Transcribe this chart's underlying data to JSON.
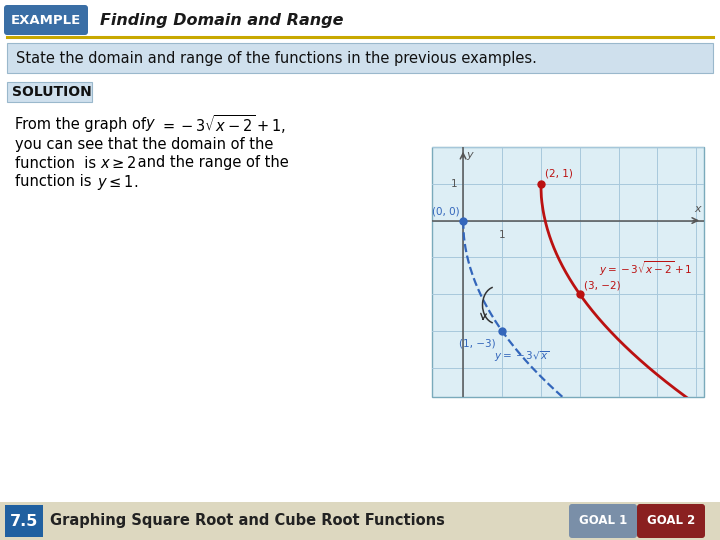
{
  "title": "Finding Domain and Range",
  "example_label": "EXAMPLE",
  "example_bg": "#3a6ea5",
  "title_color": "#1a1a1a",
  "gold_line_color": "#c8a800",
  "problem_text": "State the domain and range of the functions in the previous examples.",
  "problem_bg": "#cfe0ed",
  "problem_border": "#9ab8cc",
  "solution_label": "SOLUTION",
  "solution_bg": "#cfe0ed",
  "solution_border": "#9ab8cc",
  "footer_bg": "#ddd8c0",
  "footer_num": "7.5",
  "footer_num_bg": "#2060a0",
  "footer_text": "Graphing Square Root and Cube Root Functions",
  "goal1_text": "GOAL 1",
  "goal2_text": "GOAL 2",
  "goal1_bg": "#7a8fa8",
  "goal2_bg": "#8a2020",
  "graph_bg": "#ddeef5",
  "graph_grid_color": "#a8c8dc",
  "red_curve_color": "#bb1111",
  "blue_curve_color": "#3366bb",
  "main_bg": "#ffffff",
  "axis_color": "#555555",
  "header_bg": "#ffffff"
}
